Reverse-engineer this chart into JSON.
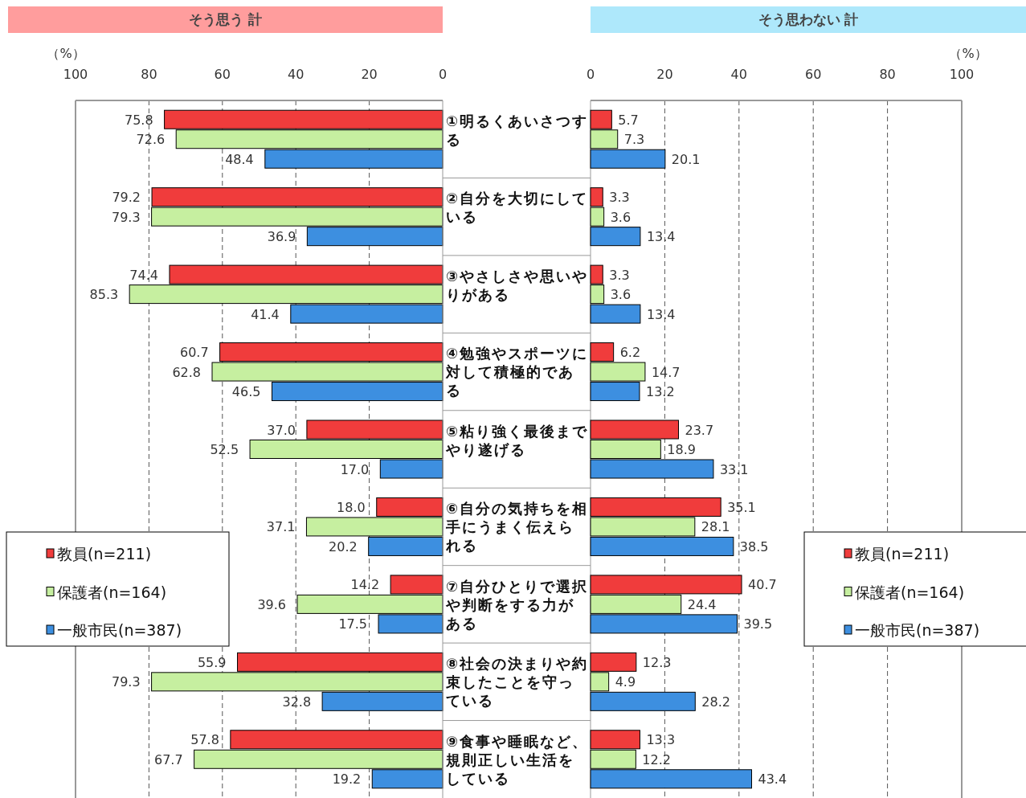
{
  "chart_data": [
    {
      "type": "bar",
      "orientation": "horizontal",
      "title": "そう思う 計",
      "xlabel": "（%）",
      "categories": [
        "①明るくあいさつする",
        "②自分を大切にしている",
        "③やさしさや思いやりがある",
        "④勉強やスポーツに対して積極的である",
        "⑤粘り強く最後までやり遂げる",
        "⑥自分の気持ちを相手にうまく伝えられる",
        "⑦自分ひとりで選択や判断をする力がある",
        "⑧社会の決まりや約束したことを守っている",
        "⑨食事や睡眠など、規則正しい生活をしている"
      ],
      "xlim": [
        100,
        0
      ],
      "xticks": [
        100,
        80,
        60,
        40,
        20,
        0
      ],
      "grid": "x",
      "legend": "bottom left",
      "series": [
        {
          "name": "教員(n=211)",
          "color": "#f03c3c",
          "values": [
            75.8,
            79.2,
            74.4,
            60.7,
            37.0,
            18.0,
            14.2,
            55.9,
            57.8
          ],
          "value_labels": [
            "75.8",
            "79.2",
            "74.4",
            "60.7",
            "37.0",
            "18.0",
            "14.2",
            "55.9",
            "57.8"
          ]
        },
        {
          "name": "保護者(n=164)",
          "color": "#c6efa0",
          "values": [
            72.6,
            79.3,
            85.3,
            62.8,
            52.5,
            37.1,
            39.6,
            79.3,
            67.7
          ],
          "value_labels": [
            "72.6",
            "79.3",
            "85.3",
            "62.8",
            "52.5",
            "37.1",
            "39.6",
            "79.3",
            "67.7"
          ]
        },
        {
          "name": "一般市民(n=387)",
          "color": "#3d8fe0",
          "values": [
            48.4,
            36.9,
            41.4,
            46.5,
            17.0,
            20.2,
            17.5,
            32.8,
            19.2
          ],
          "value_labels": [
            "48.4",
            "36.9",
            "41.4",
            "46.5",
            "17.0",
            "20.2",
            "17.5",
            "32.8",
            "19.2"
          ]
        }
      ]
    },
    {
      "type": "bar",
      "orientation": "horizontal",
      "title": "そう思わない 計",
      "xlabel": "（%）",
      "categories": [
        null,
        null,
        null,
        null,
        null,
        null,
        null,
        null,
        null
      ],
      "xlim": [
        0,
        100
      ],
      "xticks": [
        0,
        20,
        40,
        60,
        80,
        100
      ],
      "grid": "x",
      "legend": "bottom right",
      "data_labels": true,
      "series": [
        {
          "name": "教員(n=211)",
          "color": "#f03c3c",
          "values": [
            5.7,
            3.3,
            3.3,
            6.2,
            23.7,
            35.1,
            40.7,
            12.3,
            13.3
          ]
        },
        {
          "name": "保護者(n=164)",
          "color": "#c6efa0",
          "values": [
            7.3,
            3.6,
            3.6,
            14.7,
            18.9,
            28.1,
            24.4,
            4.9,
            12.2
          ]
        },
        {
          "name": "一般市民(n=387)",
          "color": "#3d8fe0",
          "values": [
            20.1,
            13.4,
            13.4,
            13.2,
            33.1,
            38.5,
            39.5,
            28.2,
            43.4
          ]
        }
      ]
    }
  ]
}
